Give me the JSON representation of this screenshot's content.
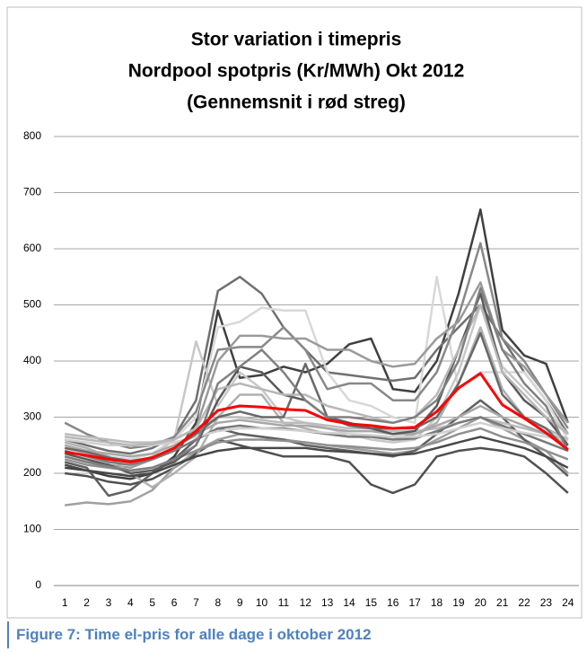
{
  "chart_data": {
    "type": "line",
    "title": [
      "Stor variation i timepris",
      "Nordpool spotpris (Kr/MWh) Okt 2012",
      "(Gennemsnit i rød streg)"
    ],
    "categories": [
      "1",
      "2",
      "3",
      "4",
      "5",
      "6",
      "7",
      "8",
      "9",
      "10",
      "11",
      "12",
      "13",
      "14",
      "15",
      "16",
      "17",
      "18",
      "19",
      "20",
      "21",
      "22",
      "23",
      "24"
    ],
    "ylim": [
      0,
      800
    ],
    "yticks": [
      0,
      100,
      200,
      300,
      400,
      500,
      600,
      700,
      800
    ],
    "grid": true,
    "series": [
      {
        "color": "#404040",
        "values": [
          210,
          205,
          195,
          190,
          200,
          230,
          290,
          490,
          370,
          375,
          390,
          380,
          395,
          430,
          440,
          350,
          345,
          400,
          520,
          670,
          455,
          410,
          395,
          290
        ]
      },
      {
        "color": "#707070",
        "values": [
          260,
          250,
          240,
          235,
          245,
          265,
          330,
          525,
          550,
          520,
          460,
          420,
          380,
          375,
          370,
          365,
          370,
          420,
          460,
          500,
          440,
          380,
          330,
          270
        ]
      },
      {
        "color": "#d8d8d8",
        "values": [
          250,
          240,
          230,
          225,
          235,
          260,
          300,
          460,
          470,
          495,
          490,
          490,
          380,
          330,
          320,
          300,
          290,
          550,
          350,
          380,
          380,
          380,
          330,
          260
        ]
      },
      {
        "color": "#c8c8c8",
        "values": [
          245,
          235,
          220,
          215,
          230,
          260,
          435,
          320,
          380,
          350,
          300,
          290,
          280,
          270,
          260,
          255,
          260,
          300,
          380,
          500,
          390,
          350,
          310,
          270
        ]
      },
      {
        "color": "#505050",
        "values": [
          200,
          195,
          185,
          180,
          190,
          210,
          235,
          260,
          250,
          240,
          230,
          230,
          230,
          220,
          180,
          165,
          180,
          230,
          240,
          245,
          240,
          230,
          200,
          165
        ]
      },
      {
        "color": "#a0a0a0",
        "values": [
          143,
          148,
          145,
          150,
          170,
          210,
          240,
          260,
          270,
          265,
          260,
          255,
          250,
          245,
          240,
          235,
          240,
          260,
          280,
          300,
          280,
          260,
          240,
          200
        ]
      },
      {
        "color": "#888888",
        "values": [
          290,
          270,
          255,
          245,
          250,
          265,
          310,
          420,
          425,
          425,
          460,
          420,
          350,
          360,
          360,
          330,
          330,
          380,
          480,
          610,
          440,
          400,
          340,
          280
        ]
      },
      {
        "color": "#9a9a9a",
        "values": [
          230,
          220,
          215,
          210,
          225,
          240,
          280,
          400,
          445,
          445,
          440,
          440,
          420,
          420,
          400,
          390,
          395,
          440,
          470,
          540,
          420,
          390,
          340,
          290
        ]
      },
      {
        "color": "#b0b0b0",
        "values": [
          255,
          245,
          230,
          200,
          175,
          200,
          230,
          300,
          340,
          340,
          290,
          280,
          270,
          270,
          265,
          260,
          270,
          290,
          360,
          460,
          350,
          300,
          280,
          260
        ]
      },
      {
        "color": "#606060",
        "values": [
          220,
          210,
          160,
          170,
          200,
          225,
          260,
          280,
          270,
          265,
          260,
          250,
          245,
          240,
          235,
          230,
          240,
          270,
          300,
          330,
          300,
          260,
          230,
          195
        ]
      },
      {
        "color": "#bcbcbc",
        "values": [
          270,
          265,
          260,
          255,
          255,
          260,
          280,
          300,
          300,
          295,
          290,
          290,
          285,
          280,
          280,
          275,
          275,
          280,
          290,
          300,
          290,
          280,
          270,
          260
        ]
      },
      {
        "color": "#a8a8a8",
        "values": [
          250,
          240,
          235,
          230,
          235,
          250,
          270,
          290,
          295,
          290,
          285,
          285,
          280,
          275,
          275,
          270,
          270,
          285,
          300,
          320,
          300,
          285,
          270,
          250
        ]
      },
      {
        "color": "#7a7a7a",
        "values": [
          240,
          230,
          220,
          215,
          225,
          240,
          260,
          280,
          285,
          280,
          280,
          275,
          270,
          265,
          265,
          260,
          262,
          275,
          290,
          300,
          285,
          270,
          255,
          240
        ]
      },
      {
        "color": "#909090",
        "values": [
          225,
          215,
          210,
          205,
          210,
          225,
          240,
          255,
          260,
          260,
          258,
          255,
          250,
          248,
          245,
          242,
          245,
          255,
          270,
          280,
          265,
          255,
          240,
          225
        ]
      },
      {
        "color": "#d0d0d0",
        "values": [
          260,
          255,
          250,
          250,
          250,
          255,
          265,
          275,
          280,
          280,
          278,
          275,
          272,
          270,
          268,
          265,
          265,
          270,
          280,
          290,
          280,
          272,
          265,
          258
        ]
      },
      {
        "color": "#5a5a5a",
        "values": [
          235,
          225,
          215,
          200,
          205,
          220,
          250,
          330,
          390,
          380,
          340,
          330,
          300,
          290,
          280,
          270,
          275,
          320,
          420,
          520,
          380,
          330,
          300,
          250
        ]
      },
      {
        "color": "#686868",
        "values": [
          245,
          238,
          228,
          222,
          228,
          245,
          270,
          300,
          310,
          300,
          300,
          395,
          300,
          285,
          280,
          280,
          280,
          300,
          360,
          450,
          340,
          300,
          280,
          240
        ]
      },
      {
        "color": "#484848",
        "values": [
          215,
          205,
          200,
          195,
          200,
          215,
          230,
          240,
          245,
          245,
          245,
          245,
          240,
          238,
          235,
          232,
          235,
          245,
          255,
          265,
          255,
          245,
          230,
          210
        ]
      },
      {
        "color": "#b8b8b8",
        "values": [
          265,
          260,
          255,
          250,
          252,
          260,
          280,
          350,
          360,
          350,
          340,
          340,
          320,
          310,
          300,
          290,
          300,
          340,
          420,
          500,
          380,
          340,
          300,
          270
        ]
      },
      {
        "color": "#808080",
        "values": [
          230,
          220,
          212,
          205,
          210,
          225,
          250,
          360,
          390,
          420,
          380,
          330,
          300,
          300,
          295,
          290,
          300,
          330,
          400,
          530,
          420,
          360,
          320,
          240
        ]
      },
      {
        "color": "#ff0000",
        "values": [
          238,
          232,
          225,
          220,
          228,
          245,
          275,
          312,
          320,
          318,
          314,
          312,
          295,
          288,
          285,
          280,
          282,
          310,
          352,
          378,
          322,
          298,
          272,
          242
        ]
      }
    ]
  },
  "caption": "Figure 7: Time el-pris for alle dage i oktober 2012"
}
